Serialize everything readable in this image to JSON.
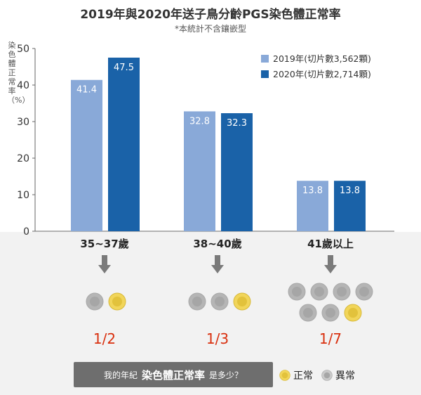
{
  "title": "2019年與2020年送子鳥分齡PGS染色體正常率",
  "subtitle": "*本統計不含鑲嵌型",
  "chart_data": {
    "type": "bar",
    "categories": [
      "35~37歲",
      "38~40歲",
      "41歲以上"
    ],
    "series": [
      {
        "name": "2019年(切片數3,562顆)",
        "values": [
          41.4,
          32.8,
          13.8
        ],
        "color": "#89a9d8"
      },
      {
        "name": "2020年(切片數2,714顆)",
        "values": [
          47.5,
          32.3,
          13.8
        ],
        "color": "#1a62a8"
      }
    ],
    "ylabel": "染色體正常率（%）",
    "ylim": [
      0,
      50
    ],
    "yticks": [
      0,
      10,
      20,
      30,
      40,
      50
    ],
    "legend": "top-right",
    "grid": false
  },
  "panels": [
    {
      "ratio": "1/2",
      "normal": 1,
      "total": 2
    },
    {
      "ratio": "1/3",
      "normal": 1,
      "total": 3
    },
    {
      "ratio": "1/7",
      "normal": 1,
      "total": 7
    }
  ],
  "question": {
    "prefix": "我的年紀",
    "emphasis": "染色體正常率",
    "suffix": "是多少？"
  },
  "cell_legend": {
    "normal": "正常",
    "abnormal": "異常"
  },
  "colors": {
    "normal_cell": "#f1d55a",
    "abnormal_cell": "#b5b5b5",
    "arrow": "#7a7a7a"
  }
}
